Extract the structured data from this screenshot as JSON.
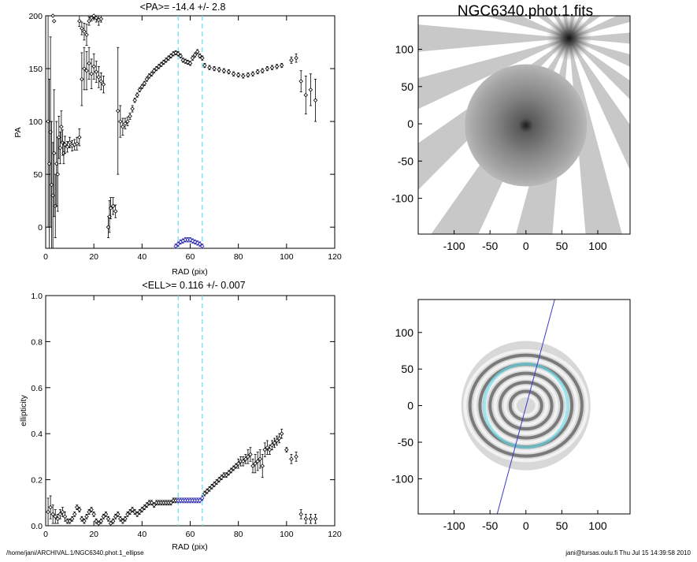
{
  "page": {
    "footer_left": "/home/jani/ARCHIVAL.1/NGC6340.phot.1_ellipse",
    "footer_right": "jani@tursas.oulu.fi  Thu Jul 15 14:39:58 2010"
  },
  "colors": {
    "marker": "#000000",
    "highlight": "#1a1aa8",
    "guide": "#66ddee",
    "cut_line": "#3a3acc"
  },
  "chart_data": [
    {
      "id": "pa-profile",
      "type": "scatter",
      "title": "<PA>= -14.4 +/-   2.8",
      "xlabel": "RAD (pix)",
      "ylabel": "PA",
      "xlim": [
        0,
        120
      ],
      "ylim": [
        -20,
        200
      ],
      "xticks": [
        0,
        20,
        40,
        60,
        80,
        100,
        120
      ],
      "yticks": [
        0,
        50,
        100,
        150,
        200
      ],
      "guides_x": [
        55,
        65
      ],
      "series": [
        {
          "role": "main",
          "x": [
            1,
            1.5,
            2,
            2.5,
            3,
            3.5,
            4,
            4.5,
            5,
            5.5,
            6,
            6.5,
            7,
            7.5,
            8,
            9,
            10,
            11,
            12,
            13,
            14,
            15,
            16,
            17,
            18,
            19,
            20,
            21,
            22,
            23,
            24,
            26,
            26.5,
            27,
            28,
            29,
            30,
            31,
            32,
            33,
            34,
            35,
            36,
            37,
            38,
            39,
            40,
            41,
            42,
            43,
            44,
            45,
            46,
            47,
            48,
            49,
            50,
            51,
            52,
            53,
            54,
            55,
            56,
            57,
            58,
            59,
            60,
            61,
            62,
            63,
            64,
            65,
            66,
            68,
            70,
            72,
            74,
            76,
            78,
            80,
            82,
            84,
            86,
            88,
            90,
            92,
            94,
            96,
            98,
            102,
            104,
            106,
            108,
            110,
            112
          ],
          "y": [
            100,
            60,
            90,
            40,
            30,
            70,
            20,
            60,
            50,
            85,
            75,
            95,
            80,
            70,
            78,
            76,
            80,
            77,
            78,
            79,
            85,
            140,
            150,
            148,
            155,
            145,
            152,
            147,
            142,
            138,
            135,
            0,
            10,
            18,
            20,
            15,
            110,
            100,
            95,
            98,
            100,
            105,
            112,
            120,
            125,
            130,
            133,
            136,
            140,
            143,
            145,
            148,
            150,
            152,
            154,
            156,
            158,
            160,
            162,
            164,
            165,
            164,
            162,
            158,
            157,
            156,
            155,
            160,
            163,
            166,
            162,
            160,
            153,
            151,
            150,
            149,
            148,
            147,
            145,
            144,
            143,
            144,
            145,
            147,
            148,
            150,
            151,
            152,
            153,
            158,
            160,
            138,
            125,
            130,
            120
          ],
          "err": [
            100,
            80,
            90,
            60,
            50,
            60,
            30,
            40,
            35,
            20,
            15,
            15,
            12,
            10,
            8,
            5,
            5,
            5,
            5,
            6,
            8,
            25,
            20,
            18,
            15,
            14,
            12,
            10,
            10,
            8,
            8,
            10,
            15,
            10,
            8,
            6,
            60,
            15,
            8,
            5,
            4,
            3,
            3,
            2,
            2,
            2,
            2,
            2,
            2,
            2,
            2,
            2,
            2,
            2,
            2,
            2,
            2,
            2,
            2,
            2,
            2,
            2,
            2,
            2,
            2,
            2,
            2,
            2,
            2,
            2,
            2,
            2,
            2,
            2,
            2,
            2,
            2,
            2,
            2,
            2,
            2,
            2,
            2,
            2,
            2,
            2,
            2,
            2,
            2,
            3,
            4,
            10,
            18,
            15,
            20
          ]
        },
        {
          "role": "upper",
          "x": [
            3,
            3.5,
            14,
            15,
            16,
            17,
            18,
            19,
            20,
            21,
            22,
            23
          ],
          "y": [
            200,
            195,
            195,
            188,
            185,
            182,
            195,
            198,
            200,
            198,
            196,
            197
          ],
          "err": [
            0,
            0,
            5,
            6,
            8,
            10,
            4,
            3,
            3,
            4,
            5,
            3
          ]
        },
        {
          "role": "highlight",
          "x": [
            54,
            55,
            56,
            57,
            58,
            59,
            60,
            61,
            62,
            63,
            64,
            65
          ],
          "y": [
            -18,
            -16,
            -14,
            -13,
            -12,
            -12,
            -12,
            -13,
            -14,
            -15,
            -16,
            -18
          ],
          "err": [
            2,
            2,
            2,
            2,
            2,
            2,
            2,
            2,
            2,
            2,
            2,
            2
          ]
        }
      ]
    },
    {
      "id": "ellipticity-profile",
      "type": "scatter",
      "title": "<ELL>= 0.116 +/-  0.007",
      "xlabel": "RAD (pix)",
      "ylabel": "ellipticity",
      "xlim": [
        0,
        120
      ],
      "ylim": [
        0,
        1.0
      ],
      "xticks": [
        0,
        20,
        40,
        60,
        80,
        100,
        120
      ],
      "yticks": [
        0.0,
        0.2,
        0.4,
        0.6,
        0.8,
        1.0
      ],
      "guides_x": [
        55,
        65
      ],
      "series": [
        {
          "role": "main",
          "x": [
            1,
            2,
            3,
            4,
            5,
            6,
            7,
            8,
            9,
            10,
            11,
            12,
            13,
            14,
            15,
            16,
            17,
            18,
            19,
            20,
            21,
            22,
            23,
            24,
            25,
            26,
            27,
            28,
            29,
            30,
            31,
            32,
            33,
            34,
            35,
            36,
            37,
            38,
            39,
            40,
            41,
            42,
            43,
            44,
            45,
            46,
            47,
            48,
            49,
            50,
            51,
            52,
            53,
            54,
            66,
            67,
            68,
            69,
            70,
            71,
            72,
            73,
            74,
            75,
            76,
            77,
            78,
            79,
            80,
            81,
            82,
            83,
            84,
            85,
            86,
            87,
            88,
            89,
            90,
            91,
            92,
            93,
            94,
            95,
            96,
            97,
            98,
            100,
            102,
            104,
            106,
            108,
            110,
            112
          ],
          "y": [
            0.06,
            0.08,
            0.05,
            0.04,
            0.03,
            0.05,
            0.06,
            0.04,
            0.02,
            0.02,
            0.03,
            0.05,
            0.08,
            0.07,
            0.03,
            0.02,
            0.04,
            0.06,
            0.07,
            0.05,
            0.02,
            0.01,
            0.02,
            0.04,
            0.05,
            0.03,
            0.01,
            0.02,
            0.04,
            0.05,
            0.03,
            0.02,
            0.03,
            0.05,
            0.06,
            0.07,
            0.06,
            0.05,
            0.06,
            0.07,
            0.08,
            0.09,
            0.1,
            0.1,
            0.09,
            0.1,
            0.1,
            0.1,
            0.1,
            0.1,
            0.1,
            0.1,
            0.11,
            0.11,
            0.14,
            0.15,
            0.16,
            0.17,
            0.18,
            0.19,
            0.2,
            0.21,
            0.22,
            0.22,
            0.23,
            0.24,
            0.25,
            0.26,
            0.27,
            0.28,
            0.28,
            0.29,
            0.3,
            0.31,
            0.26,
            0.27,
            0.28,
            0.29,
            0.26,
            0.33,
            0.34,
            0.33,
            0.35,
            0.36,
            0.37,
            0.38,
            0.4,
            0.33,
            0.29,
            0.3,
            0.05,
            0.03,
            0.03,
            0.03
          ],
          "err": [
            0.06,
            0.05,
            0.04,
            0.03,
            0.02,
            0.02,
            0.02,
            0.02,
            0.01,
            0.01,
            0.01,
            0.01,
            0.01,
            0.01,
            0.01,
            0.01,
            0.01,
            0.01,
            0.01,
            0.01,
            0.01,
            0.01,
            0.01,
            0.01,
            0.01,
            0.01,
            0.01,
            0.01,
            0.01,
            0.01,
            0.01,
            0.01,
            0.01,
            0.01,
            0.01,
            0.01,
            0.01,
            0.01,
            0.01,
            0.01,
            0.01,
            0.01,
            0.01,
            0.01,
            0.01,
            0.01,
            0.01,
            0.01,
            0.01,
            0.01,
            0.01,
            0.01,
            0.01,
            0.01,
            0.01,
            0.01,
            0.01,
            0.01,
            0.01,
            0.01,
            0.01,
            0.01,
            0.01,
            0.01,
            0.01,
            0.01,
            0.01,
            0.01,
            0.02,
            0.02,
            0.02,
            0.02,
            0.03,
            0.03,
            0.03,
            0.04,
            0.04,
            0.04,
            0.05,
            0.03,
            0.03,
            0.02,
            0.02,
            0.02,
            0.02,
            0.02,
            0.02,
            0.01,
            0.02,
            0.02,
            0.02,
            0.02,
            0.02,
            0.02
          ]
        },
        {
          "role": "highlight",
          "x": [
            55,
            56,
            57,
            58,
            59,
            60,
            61,
            62,
            63,
            64,
            65
          ],
          "y": [
            0.11,
            0.11,
            0.11,
            0.11,
            0.11,
            0.11,
            0.11,
            0.11,
            0.11,
            0.11,
            0.12
          ],
          "err": [
            0.01,
            0.01,
            0.01,
            0.01,
            0.01,
            0.01,
            0.01,
            0.01,
            0.01,
            0.01,
            0.01
          ]
        }
      ]
    },
    {
      "id": "galaxy-image",
      "type": "image",
      "title": "NGC6340.phot.1.fits",
      "xlim": [
        -150,
        145
      ],
      "ylim": [
        -148,
        145
      ],
      "xticks": [
        -100,
        -50,
        0,
        50,
        100
      ],
      "yticks": [
        -100,
        -50,
        0,
        50,
        100
      ],
      "galaxy_center": [
        0,
        -2
      ],
      "galaxy_radius": 85,
      "bright_star": [
        60,
        115
      ]
    },
    {
      "id": "residual-image",
      "type": "image",
      "title": "",
      "xlim": [
        -150,
        145
      ],
      "ylim": [
        -148,
        145
      ],
      "xticks": [
        -100,
        -50,
        0,
        50,
        100
      ],
      "yticks": [
        -100,
        -50,
        0,
        50,
        100
      ],
      "ring_radii": [
        15,
        22,
        29,
        36,
        43,
        50,
        57,
        64,
        71,
        78,
        85
      ],
      "highlight_radius": 58,
      "cut_line": [
        [
          -40,
          -148
        ],
        [
          40,
          145
        ]
      ]
    }
  ]
}
